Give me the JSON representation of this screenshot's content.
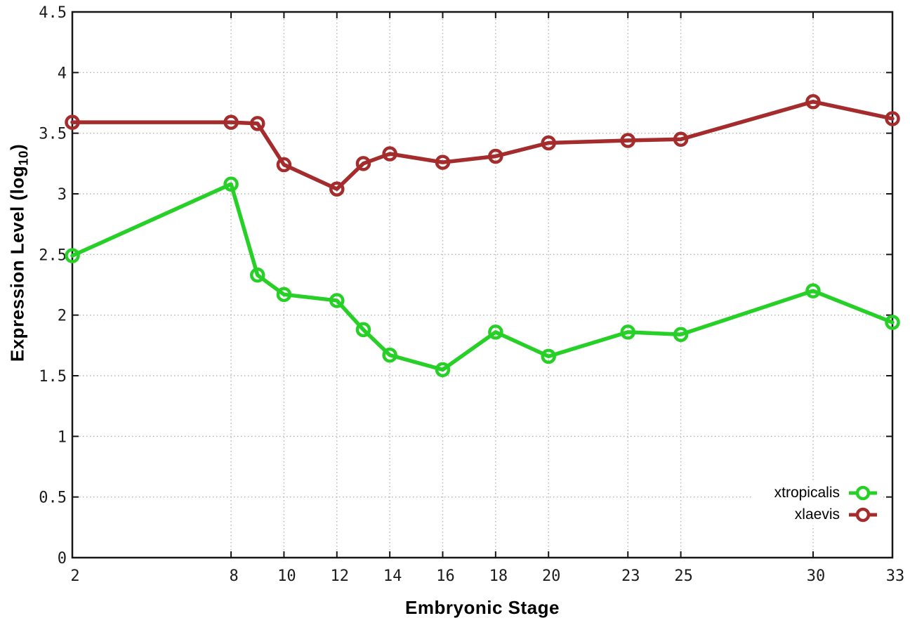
{
  "chart_data": {
    "type": "line",
    "title": "",
    "xlabel": "Embryonic Stage",
    "ylabel": "Expression Level (log10)",
    "ylabel_parts": {
      "main": "Expression Level (log",
      "sub": "10",
      "close": ")"
    },
    "x": [
      2,
      8,
      9,
      10,
      12,
      13,
      14,
      16,
      18,
      20,
      23,
      25,
      30,
      33
    ],
    "xlim": [
      2,
      33
    ],
    "ylim": [
      0,
      4.5
    ],
    "x_tick_values": [
      2,
      8,
      10,
      12,
      14,
      16,
      18,
      20,
      23,
      25,
      30,
      33
    ],
    "x_tick_labels": [
      "2",
      "8",
      "10",
      "12",
      "14",
      "16",
      "18",
      "20",
      "23",
      "25",
      "30",
      "33"
    ],
    "y_tick_values": [
      0,
      0.5,
      1,
      1.5,
      2,
      2.5,
      3,
      3.5,
      4,
      4.5
    ],
    "y_tick_labels": [
      "0",
      "0.5",
      "1",
      "1.5",
      "2",
      "2.5",
      "3",
      "3.5",
      "4",
      "4.5"
    ],
    "grid": true,
    "legend_position": "bottom-right",
    "series": [
      {
        "name": "xtropicalis",
        "color": "#26d026",
        "values": [
          2.49,
          3.08,
          2.33,
          2.17,
          2.12,
          1.88,
          1.67,
          1.55,
          1.86,
          1.66,
          1.86,
          1.84,
          2.2,
          1.94
        ]
      },
      {
        "name": "xlaevis",
        "color": "#a42c2c",
        "values": [
          3.59,
          3.59,
          3.58,
          3.24,
          3.04,
          3.25,
          3.33,
          3.26,
          3.31,
          3.42,
          3.44,
          3.45,
          3.76,
          3.62
        ]
      }
    ]
  },
  "style": {
    "background": "#ffffff",
    "border_color": "#161616",
    "grid_color": "#b4b4b4",
    "tick_label_color": "#1c1c1c"
  }
}
